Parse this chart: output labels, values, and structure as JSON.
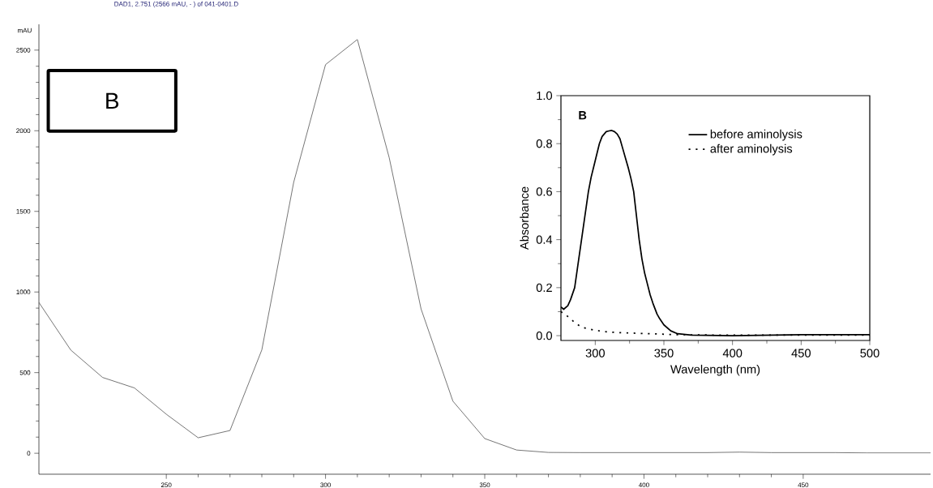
{
  "chart_data": [
    {
      "type": "line",
      "title": "DAD1, 2.751 (2566 mAU, - ) of 041-0401.D",
      "ylabel": "mAU",
      "annotations": [
        "B"
      ],
      "color": "#303030",
      "x": [
        210,
        220,
        230,
        240,
        250,
        260,
        270,
        280,
        290,
        300,
        310,
        320,
        330,
        340,
        350,
        360,
        370,
        380,
        390,
        400,
        410,
        420,
        430,
        440,
        450,
        460,
        470,
        480,
        490
      ],
      "values": [
        935,
        640,
        470,
        405,
        242,
        96,
        141,
        641,
        1680,
        2410,
        2566,
        1833,
        895,
        323,
        91,
        20,
        5,
        4,
        4,
        4,
        4,
        4,
        7,
        4,
        4,
        4,
        2,
        2,
        2
      ],
      "xlim": [
        210,
        490
      ],
      "ylim": [
        -130,
        2660
      ],
      "xticks": [
        250,
        300,
        350,
        400,
        450
      ],
      "yticks": [
        0,
        500,
        1000,
        1500,
        2000,
        2500
      ]
    },
    {
      "type": "line",
      "xlabel": "Wavelength (nm)",
      "ylabel": "Absorbance",
      "annotations": [
        "B"
      ],
      "legend": "top right",
      "series": [
        {
          "name": "before aminolysis",
          "color": "#000000",
          "line_style": "solid",
          "x": [
            275,
            277,
            280,
            282,
            285,
            287,
            290,
            292,
            295,
            297,
            300,
            303,
            305,
            308,
            310,
            312,
            314,
            316,
            318,
            320,
            322,
            324,
            326,
            328,
            330,
            332,
            334,
            336,
            338,
            340,
            342,
            345,
            347,
            350,
            355,
            360,
            370,
            400,
            450,
            500
          ],
          "values": [
            0.12,
            0.11,
            0.125,
            0.15,
            0.2,
            0.28,
            0.4,
            0.48,
            0.6,
            0.66,
            0.73,
            0.8,
            0.83,
            0.85,
            0.853,
            0.855,
            0.85,
            0.84,
            0.82,
            0.78,
            0.74,
            0.7,
            0.655,
            0.6,
            0.5,
            0.4,
            0.32,
            0.26,
            0.215,
            0.17,
            0.135,
            0.09,
            0.07,
            0.045,
            0.02,
            0.008,
            0.002,
            0.0,
            0.004,
            0.004
          ]
        },
        {
          "name": "after aminolysis",
          "color": "#000000",
          "line_style": "dotted",
          "x": [
            275,
            280,
            285,
            290,
            300,
            310,
            320,
            340,
            360,
            400,
            500
          ],
          "values": [
            0.1,
            0.08,
            0.055,
            0.035,
            0.022,
            0.015,
            0.012,
            0.008,
            0.004,
            0.002,
            0.002
          ]
        }
      ],
      "xlim": [
        275,
        500
      ],
      "ylim": [
        -0.02,
        1.0
      ],
      "xticks": [
        300,
        350,
        400,
        450,
        500
      ],
      "yticks": [
        {
          "value": 0,
          "label": "0.0"
        },
        0.2,
        0.4,
        0.6,
        0.8,
        {
          "value": 1,
          "label": "1.0"
        }
      ]
    }
  ]
}
